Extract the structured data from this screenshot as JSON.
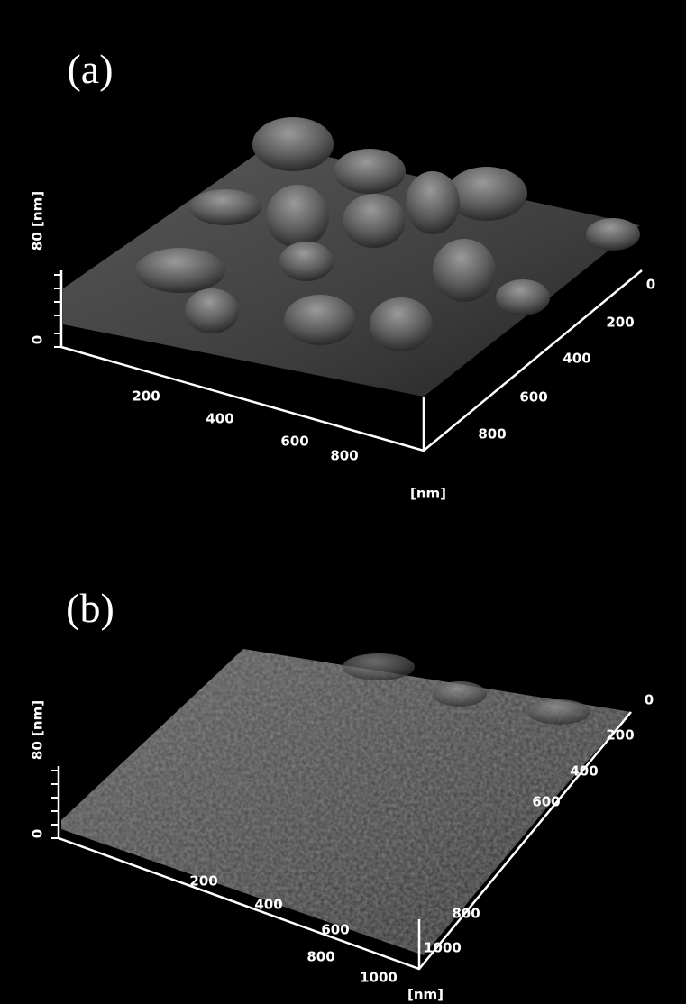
{
  "panels": [
    {
      "label": "(a)",
      "z_axis": {
        "title": "80 [nm]",
        "tick_labels": [
          "0"
        ]
      },
      "x_axis": {
        "tick_labels": [
          "200",
          "400",
          "600",
          "800"
        ]
      },
      "y_axis": {
        "tick_labels": [
          "0",
          "200",
          "400",
          "600",
          "800"
        ]
      },
      "unit": "[nm]"
    },
    {
      "label": "(b)",
      "z_axis": {
        "title": "80 [nm]",
        "tick_labels": [
          "0"
        ]
      },
      "x_axis": {
        "tick_labels": [
          "200",
          "400",
          "600",
          "800",
          "1000"
        ]
      },
      "y_axis": {
        "tick_labels": [
          "0",
          "200",
          "400",
          "600",
          "800",
          "1000"
        ]
      },
      "unit": "[nm]"
    }
  ]
}
